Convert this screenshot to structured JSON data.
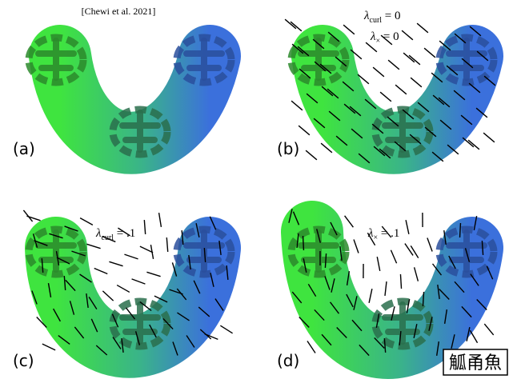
{
  "figure": {
    "citation": "[Chewi et al. 2021]",
    "panels": [
      {
        "label": "(a)"
      },
      {
        "label": "(b)",
        "annotations": [
          {
            "symbol": "λ",
            "sub": "curl",
            "rest": " = 0"
          },
          {
            "symbol": "λ",
            "sub": "×",
            "rest": " = 0"
          }
        ]
      },
      {
        "label": "(c)",
        "annotations": [
          {
            "symbol": "λ",
            "sub": "curl",
            "rest": " = .1"
          }
        ]
      },
      {
        "label": "(d)",
        "annotations": [
          {
            "symbol": "λ",
            "sub": "×",
            "rest": " = .1"
          }
        ]
      }
    ],
    "stamp": "觚甬魚"
  }
}
